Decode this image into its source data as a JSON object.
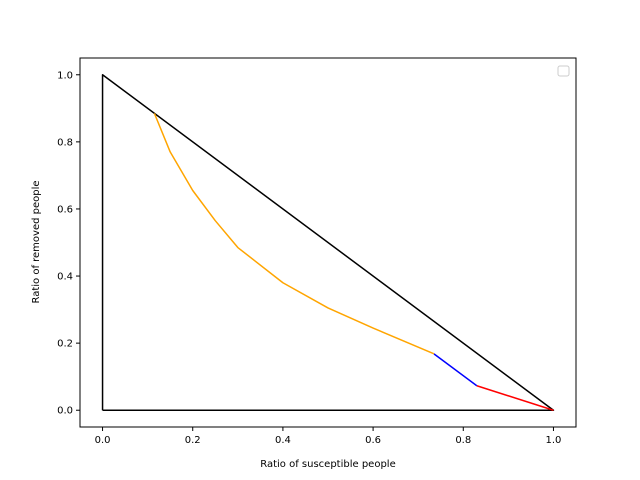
{
  "chart_data": {
    "type": "line",
    "title": "",
    "xlabel": "Ratio of susceptible people",
    "ylabel": "Ratio of removed people",
    "xlim": [
      -0.05,
      1.05
    ],
    "ylim": [
      -0.05,
      1.05
    ],
    "xticks": [
      0.0,
      0.2,
      0.4,
      0.6,
      0.8,
      1.0
    ],
    "xtick_labels": [
      "0.0",
      "0.2",
      "0.4",
      "0.6",
      "0.8",
      "1.0"
    ],
    "yticks": [
      0.0,
      0.2,
      0.4,
      0.6,
      0.8,
      1.0
    ],
    "ytick_labels": [
      "0.0",
      "0.2",
      "0.4",
      "0.6",
      "0.8",
      "1.0"
    ],
    "grid": false,
    "legend": {
      "placement": "upper right",
      "entries": []
    },
    "series": [
      {
        "color": "#000000",
        "x": [
          0.0,
          0.0,
          1.0,
          0.0
        ],
        "y": [
          0.0,
          1.0,
          0.0,
          0.0
        ]
      },
      {
        "color": "#ff0000",
        "x": [
          1.0,
          0.83
        ],
        "y": [
          0.0,
          0.073
        ]
      },
      {
        "color": "#0000ff",
        "x": [
          0.83,
          0.735
        ],
        "y": [
          0.073,
          0.168
        ]
      },
      {
        "color": "#ffa500",
        "x": [
          0.735,
          0.6,
          0.5,
          0.4,
          0.3,
          0.25,
          0.2,
          0.15,
          0.115
        ],
        "y": [
          0.168,
          0.245,
          0.305,
          0.38,
          0.485,
          0.565,
          0.655,
          0.77,
          0.885
        ]
      }
    ]
  }
}
